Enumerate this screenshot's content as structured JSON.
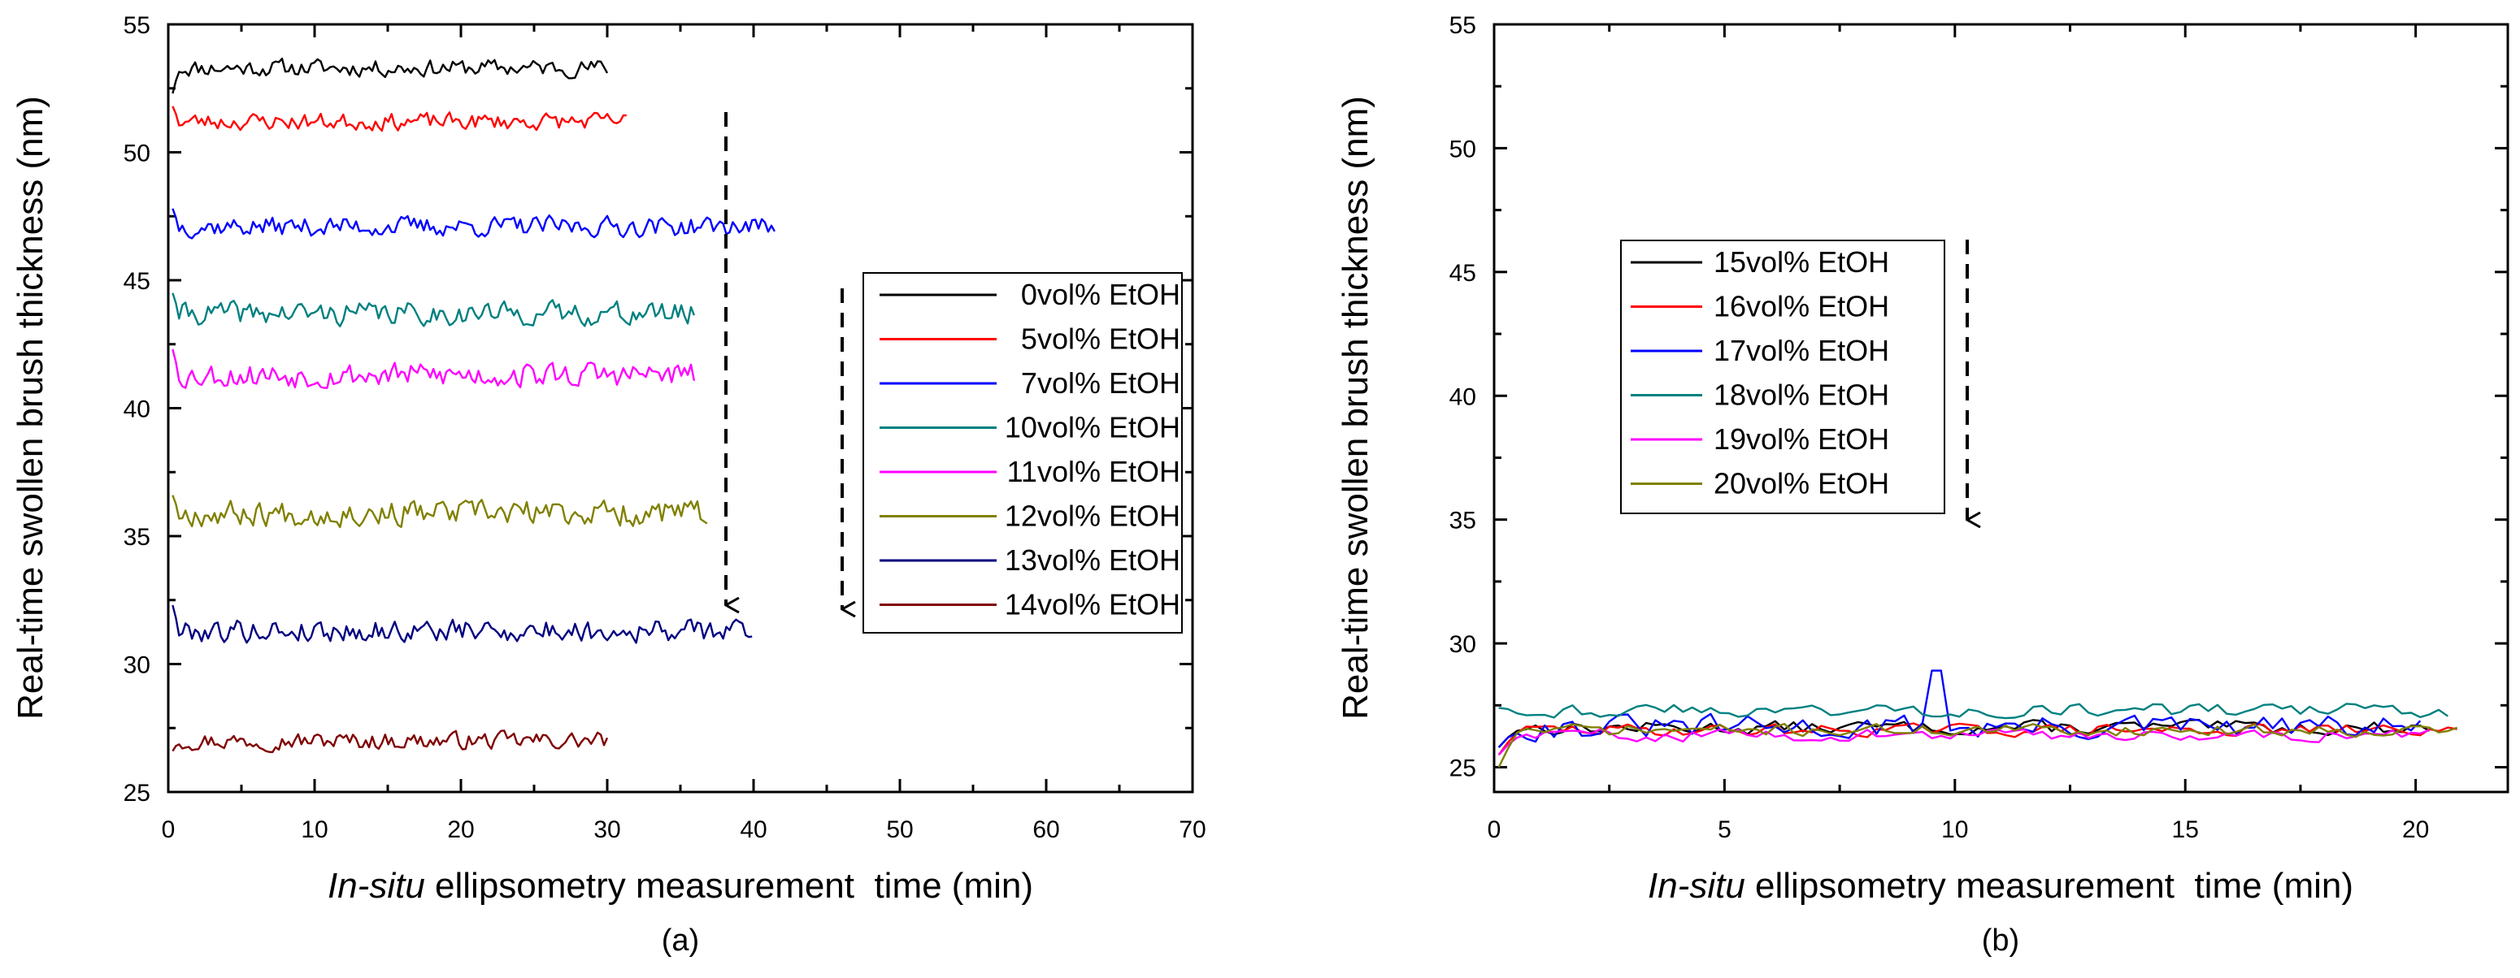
{
  "chart_data": [
    {
      "type": "line",
      "panel_label": "(a)",
      "xlabel_italic": "In-situ",
      "xlabel_rest": " ellipsometry measurement  time (min)",
      "ylabel": "Real-time swollen brush thickness (nm)",
      "xlim": [
        0,
        70
      ],
      "ylim": [
        25,
        55
      ],
      "xticks": [
        0,
        10,
        20,
        30,
        40,
        50,
        60,
        70
      ],
      "yticks": [
        25,
        30,
        35,
        40,
        45,
        50,
        55
      ],
      "legend_position": "right-middle",
      "annotations": [
        "dashed downward arrow near x=38",
        "dashed downward arrow at legend left"
      ],
      "series": [
        {
          "name": "  0vol% EtOH",
          "color": "#000000",
          "x_start": 0.3,
          "x_end": 30.0,
          "level": 53.3,
          "start_value": 52.3,
          "noise": 0.3,
          "seed": 11
        },
        {
          "name": "  5vol% EtOH",
          "color": "#ff0000",
          "x_start": 0.3,
          "x_end": 31.5,
          "level": 51.2,
          "start_value": 51.8,
          "noise": 0.3,
          "seed": 23
        },
        {
          "name": "  7vol% EtOH",
          "color": "#0000ff",
          "x_start": 0.3,
          "x_end": 41.5,
          "level": 47.1,
          "start_value": 47.8,
          "noise": 0.35,
          "seed": 37
        },
        {
          "name": "10vol% EtOH",
          "color": "#008080",
          "x_start": 0.3,
          "x_end": 36.0,
          "level": 43.7,
          "start_value": 44.5,
          "noise": 0.4,
          "seed": 41
        },
        {
          "name": "11vol% EtOH",
          "color": "#ff00ff",
          "x_start": 0.3,
          "x_end": 36.0,
          "level": 41.3,
          "start_value": 42.3,
          "noise": 0.45,
          "seed": 53
        },
        {
          "name": "12vol% EtOH",
          "color": "#808000",
          "x_start": 0.3,
          "x_end": 37.0,
          "level": 35.9,
          "start_value": 36.6,
          "noise": 0.45,
          "seed": 67
        },
        {
          "name": "13vol% EtOH",
          "color": "#000080",
          "x_start": 0.3,
          "x_end": 40.0,
          "level": 31.3,
          "start_value": 32.3,
          "noise": 0.4,
          "seed": 79
        },
        {
          "name": "14vol% EtOH",
          "color": "#800000",
          "x_start": 0.3,
          "x_end": 30.0,
          "level": 27.0,
          "start_value": 26.6,
          "noise": 0.3,
          "seed": 97
        }
      ]
    },
    {
      "type": "line",
      "panel_label": "(b)",
      "xlabel_italic": "In-situ",
      "xlabel_rest": " ellipsometry measurement  time (min)",
      "ylabel": "Real-time swollen brush thickness (nm)",
      "xlim": [
        0,
        22
      ],
      "ylim": [
        24,
        55
      ],
      "xticks": [
        0,
        5,
        10,
        15,
        20
      ],
      "yticks": [
        25,
        30,
        35,
        40,
        45,
        50,
        55
      ],
      "legend_position": "upper-left",
      "annotations": [
        "dashed downward arrow near x=10"
      ],
      "series": [
        {
          "name": "15vol% EtOH",
          "color": "#000000",
          "x_start": 0.1,
          "x_end": 20.3,
          "level": 26.6,
          "start_value": 25.8,
          "noise": 0.25,
          "seed": 13
        },
        {
          "name": "16vol% EtOH",
          "color": "#ff0000",
          "x_start": 0.1,
          "x_end": 21.0,
          "level": 26.5,
          "start_value": 25.5,
          "noise": 0.22,
          "seed": 29
        },
        {
          "name": "17vol% EtOH",
          "color": "#0000ff",
          "x_start": 0.1,
          "x_end": 20.2,
          "level": 26.6,
          "start_value": 25.8,
          "noise": 0.45,
          "seed": 31,
          "spike_x": 9.6,
          "spike_value": 28.9
        },
        {
          "name": "18vol% EtOH",
          "color": "#008080",
          "x_start": 0.1,
          "x_end": 20.8,
          "level": 27.3,
          "start_value": 27.4,
          "noise": 0.25,
          "seed": 43
        },
        {
          "name": "19vol% EtOH",
          "color": "#ff00ff",
          "x_start": 0.1,
          "x_end": 20.3,
          "level": 26.3,
          "start_value": 25.5,
          "noise": 0.22,
          "seed": 59
        },
        {
          "name": "20vol% EtOH",
          "color": "#808000",
          "x_start": 0.1,
          "x_end": 21.0,
          "level": 26.5,
          "start_value": 25.0,
          "noise": 0.22,
          "seed": 71
        }
      ]
    }
  ]
}
